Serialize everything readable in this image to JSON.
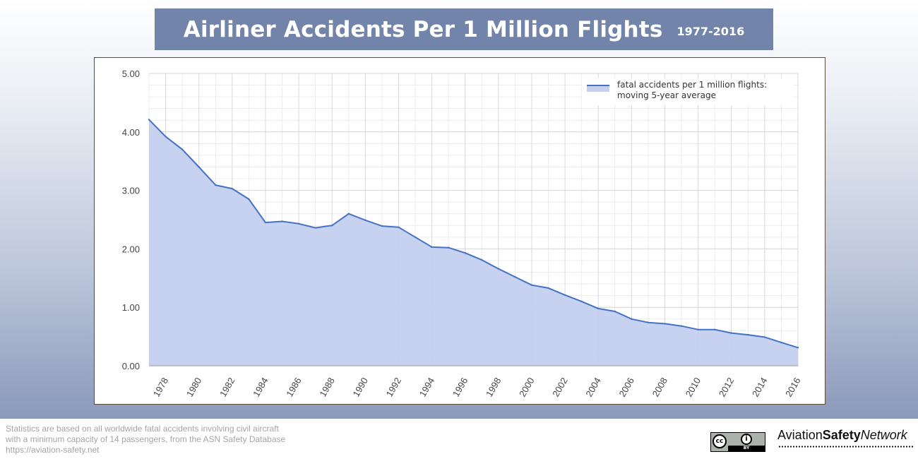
{
  "header": {
    "title": "Airliner Accidents Per 1 Million Flights",
    "subtitle": "1977-2016"
  },
  "chart_data": {
    "type": "area",
    "title": "Airliner Accidents Per 1 Million Flights",
    "xlabel": "",
    "ylabel": "",
    "xlim": [
      1977,
      2016
    ],
    "ylim": [
      0,
      5
    ],
    "y_ticks": [
      "0.00",
      "1.00",
      "2.00",
      "3.00",
      "4.00",
      "5.00"
    ],
    "x_ticks": [
      1978,
      1980,
      1982,
      1984,
      1986,
      1988,
      1990,
      1992,
      1994,
      1996,
      1998,
      2000,
      2002,
      2004,
      2006,
      2008,
      2010,
      2012,
      2014,
      2016
    ],
    "grid": true,
    "legend_position": "top-right",
    "series": [
      {
        "name": "fatal accidents per 1 million flights: moving 5-year average",
        "legend_lines": [
          "fatal accidents per 1 million flights:",
          "moving 5-year average"
        ],
        "x": [
          1977,
          1978,
          1979,
          1980,
          1981,
          1982,
          1983,
          1984,
          1985,
          1986,
          1987,
          1988,
          1989,
          1990,
          1991,
          1992,
          1993,
          1994,
          1995,
          1996,
          1997,
          1998,
          1999,
          2000,
          2001,
          2002,
          2003,
          2004,
          2005,
          2006,
          2007,
          2008,
          2009,
          2010,
          2011,
          2012,
          2013,
          2014,
          2015,
          2016
        ],
        "values": [
          4.21,
          3.92,
          3.7,
          3.4,
          3.09,
          3.03,
          2.85,
          2.45,
          2.47,
          2.43,
          2.36,
          2.4,
          2.6,
          2.49,
          2.39,
          2.37,
          2.2,
          2.03,
          2.02,
          1.93,
          1.81,
          1.66,
          1.52,
          1.38,
          1.33,
          1.21,
          1.1,
          0.98,
          0.93,
          0.8,
          0.74,
          0.72,
          0.68,
          0.62,
          0.62,
          0.56,
          0.53,
          0.49,
          0.4,
          0.31
        ],
        "line_color": "#4472c4",
        "fill_color": "#c3d0ef"
      }
    ]
  },
  "footer": {
    "note_lines": [
      "Statistics are based on all worldwide fatal accidents involving civil aircraft",
      "with a minimum capacity of 14 passengers, from the ASN Safety Database",
      "https://aviation-safety.net"
    ],
    "license_badge": {
      "cc": "cc",
      "by": "i",
      "label": "BY"
    },
    "logo": {
      "part1": "Aviation",
      "part2": "Safety",
      "part3": "Network"
    }
  }
}
